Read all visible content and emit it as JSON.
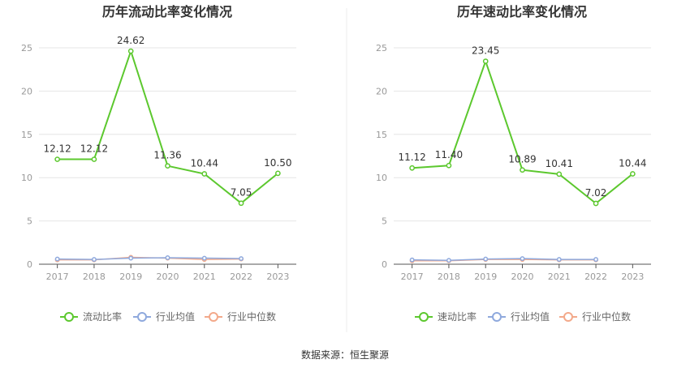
{
  "colors": {
    "primary": "#5cc82e",
    "industry_avg": "#8fa9dd",
    "industry_median": "#f3a98a"
  },
  "chart_data": [
    {
      "type": "line",
      "title": "历年流动比率变化情况",
      "x": [
        "2017",
        "2018",
        "2019",
        "2020",
        "2021",
        "2022",
        "2023"
      ],
      "ylim": [
        0,
        25
      ],
      "yticks": [
        0,
        5,
        10,
        15,
        20,
        25
      ],
      "series": [
        {
          "name": "流动比率",
          "values": [
            12.12,
            12.12,
            24.62,
            11.36,
            10.44,
            7.05,
            10.5
          ],
          "labels": [
            "12.12",
            "12.12",
            "24.62",
            "11.36",
            "10.44",
            "7.05",
            "10.50"
          ]
        },
        {
          "name": "行业均值",
          "values": [
            0.6,
            0.55,
            0.7,
            0.75,
            0.7,
            0.65,
            null
          ]
        },
        {
          "name": "行业中位数",
          "values": [
            0.5,
            0.5,
            0.8,
            0.7,
            0.55,
            0.6,
            null
          ]
        }
      ]
    },
    {
      "type": "line",
      "title": "历年速动比率变化情况",
      "x": [
        "2017",
        "2018",
        "2019",
        "2020",
        "2021",
        "2022",
        "2023"
      ],
      "ylim": [
        0,
        25
      ],
      "yticks": [
        0,
        5,
        10,
        15,
        20,
        25
      ],
      "series": [
        {
          "name": "速动比率",
          "values": [
            11.12,
            11.4,
            23.45,
            10.89,
            10.41,
            7.02,
            10.44
          ],
          "labels": [
            "11.12",
            "11.40",
            "23.45",
            "10.89",
            "10.41",
            "7.02",
            "10.44"
          ]
        },
        {
          "name": "行业均值",
          "values": [
            0.5,
            0.45,
            0.6,
            0.65,
            0.55,
            0.55,
            null
          ]
        },
        {
          "name": "行业中位数",
          "values": [
            0.4,
            0.4,
            0.55,
            0.55,
            0.5,
            0.5,
            null
          ]
        }
      ]
    }
  ],
  "source": "数据来源：恒生聚源"
}
